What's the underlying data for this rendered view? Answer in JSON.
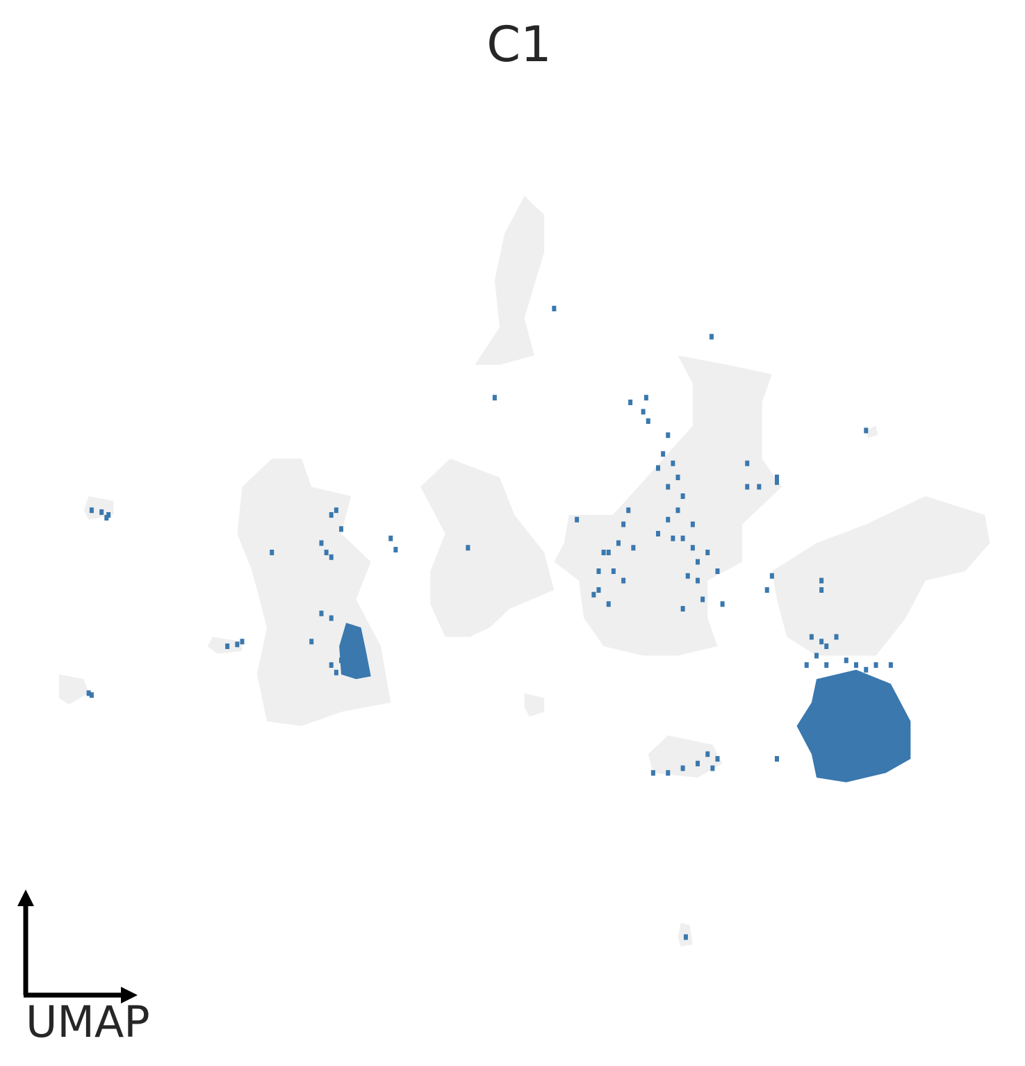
{
  "chart_data": {
    "type": "scatter",
    "title": "C1",
    "axis_indicator_label": "UMAP",
    "grid": false,
    "legend": "none",
    "colors": {
      "background_cells": "#efefef",
      "highlighted_cells": "#3a78ae",
      "axis_arrow": "#000000",
      "text": "#262626"
    },
    "x_range": [
      0,
      100
    ],
    "y_range": [
      0,
      100
    ],
    "background_clusters": [
      {
        "name": "top-spike",
        "outline": [
          [
            50.5,
            88
          ],
          [
            52.5,
            86
          ],
          [
            52.5,
            82
          ],
          [
            50.5,
            75
          ],
          [
            51.5,
            71
          ],
          [
            48,
            70
          ],
          [
            45.5,
            70
          ],
          [
            48,
            74
          ],
          [
            47.5,
            79
          ],
          [
            48.5,
            84
          ]
        ]
      },
      {
        "name": "right-upper",
        "outline": [
          [
            66,
            71
          ],
          [
            71,
            70
          ],
          [
            75.5,
            69
          ],
          [
            74.5,
            66
          ],
          [
            74.5,
            60
          ],
          [
            76.5,
            57
          ],
          [
            72.5,
            53
          ],
          [
            72.5,
            49
          ],
          [
            69,
            47
          ],
          [
            64,
            44
          ],
          [
            59.5,
            46
          ],
          [
            57,
            47
          ],
          [
            56,
            50
          ],
          [
            62,
            57
          ],
          [
            67.5,
            63.5
          ],
          [
            67.5,
            68
          ]
        ]
      },
      {
        "name": "right-mid",
        "outline": [
          [
            55,
            54
          ],
          [
            60.5,
            54
          ],
          [
            66.5,
            52
          ],
          [
            69,
            48
          ],
          [
            69,
            43
          ],
          [
            70,
            40
          ],
          [
            66,
            39
          ],
          [
            62.5,
            39
          ],
          [
            58.5,
            40
          ],
          [
            56.5,
            43
          ],
          [
            56,
            47
          ],
          [
            53.5,
            49
          ],
          [
            54.5,
            51
          ]
        ]
      },
      {
        "name": "left-main",
        "outline": [
          [
            25,
            60
          ],
          [
            28,
            60
          ],
          [
            29,
            57
          ],
          [
            33,
            56
          ],
          [
            32,
            52
          ],
          [
            35,
            49
          ],
          [
            33.5,
            45
          ],
          [
            36,
            40
          ],
          [
            37,
            34
          ],
          [
            32,
            33
          ],
          [
            28,
            31.5
          ],
          [
            24.5,
            32
          ],
          [
            23.5,
            37
          ],
          [
            24.5,
            42
          ],
          [
            23,
            48
          ],
          [
            21.5,
            52
          ],
          [
            22,
            57
          ]
        ]
      },
      {
        "name": "center-blob",
        "outline": [
          [
            43,
            60
          ],
          [
            48,
            58
          ],
          [
            49.5,
            54
          ],
          [
            52.5,
            50
          ],
          [
            53.5,
            46
          ],
          [
            49,
            44
          ],
          [
            47,
            42
          ],
          [
            45,
            41
          ],
          [
            42.5,
            41
          ],
          [
            41,
            44.5
          ],
          [
            41,
            48
          ],
          [
            42.5,
            52
          ],
          [
            41,
            55
          ],
          [
            40,
            57
          ]
        ]
      },
      {
        "name": "right-lower",
        "outline": [
          [
            75.5,
            48
          ],
          [
            80,
            51
          ],
          [
            85,
            53
          ],
          [
            91,
            56
          ],
          [
            97,
            54
          ],
          [
            97.5,
            51
          ],
          [
            95,
            48
          ],
          [
            91,
            47
          ],
          [
            89,
            43
          ],
          [
            86,
            39
          ],
          [
            80,
            39
          ],
          [
            77,
            41
          ],
          [
            76,
            45
          ]
        ]
      },
      {
        "name": "bottom-right-patch",
        "outline": [
          [
            65,
            30.5
          ],
          [
            69.5,
            29.5
          ],
          [
            70.5,
            27.5
          ],
          [
            68,
            26
          ],
          [
            63.5,
            26.5
          ],
          [
            63,
            28.5
          ]
        ]
      },
      {
        "name": "small-far-left",
        "outline": [
          [
            6.5,
            56
          ],
          [
            9,
            55.5
          ],
          [
            9,
            54
          ],
          [
            6.5,
            53.5
          ],
          [
            6,
            54.5
          ]
        ]
      },
      {
        "name": "small-left",
        "outline": [
          [
            19,
            41
          ],
          [
            22,
            40.5
          ],
          [
            22,
            39.5
          ],
          [
            19.5,
            39.2
          ],
          [
            18.5,
            40
          ]
        ]
      },
      {
        "name": "small-bottom-left",
        "outline": [
          [
            3.5,
            37
          ],
          [
            6,
            36.5
          ],
          [
            6.5,
            35
          ],
          [
            4.5,
            33.8
          ],
          [
            3.5,
            34.5
          ]
        ]
      },
      {
        "name": "small-center",
        "outline": [
          [
            50.5,
            35
          ],
          [
            52.5,
            34.5
          ],
          [
            52.5,
            33
          ],
          [
            51,
            32.5
          ],
          [
            50.5,
            33.5
          ]
        ]
      },
      {
        "name": "small-bottom",
        "outline": [
          [
            66.3,
            10.5
          ],
          [
            67.2,
            10.3
          ],
          [
            67.5,
            8.2
          ],
          [
            66.3,
            8
          ],
          [
            66,
            9
          ]
        ]
      },
      {
        "name": "small-top-right",
        "outline": [
          [
            85,
            63
          ],
          [
            86,
            63.5
          ],
          [
            86.2,
            62.5
          ],
          [
            85.2,
            62.2
          ]
        ]
      }
    ],
    "highlighted_clusters": [
      {
        "name": "main-c1-cluster",
        "outline": [
          [
            80,
            36.5
          ],
          [
            84,
            37.5
          ],
          [
            87.5,
            36
          ],
          [
            89.5,
            32
          ],
          [
            89.5,
            28
          ],
          [
            87,
            26.5
          ],
          [
            83,
            25.5
          ],
          [
            80,
            26
          ],
          [
            79.5,
            28.5
          ],
          [
            78,
            31.5
          ],
          [
            79.5,
            34
          ]
        ]
      },
      {
        "name": "left-main-c1-cluster",
        "outline": [
          [
            32.5,
            42.5
          ],
          [
            34,
            42
          ],
          [
            34.5,
            39.5
          ],
          [
            35,
            36.8
          ],
          [
            33.5,
            36.5
          ],
          [
            32,
            37
          ],
          [
            31.8,
            40
          ]
        ]
      }
    ],
    "highlighted_points": [
      [
        62.8,
        66.5
      ],
      [
        61.2,
        66
      ],
      [
        62.5,
        65
      ],
      [
        63,
        64
      ],
      [
        65,
        62.5
      ],
      [
        64.5,
        60.5
      ],
      [
        64,
        59
      ],
      [
        65.5,
        59.5
      ],
      [
        66,
        58
      ],
      [
        65,
        57
      ],
      [
        66.5,
        56
      ],
      [
        66,
        54.5
      ],
      [
        65,
        53.5
      ],
      [
        67.5,
        53
      ],
      [
        66.5,
        51.5
      ],
      [
        67.5,
        50.5
      ],
      [
        68,
        49
      ],
      [
        67,
        47.5
      ],
      [
        68,
        47
      ],
      [
        68.5,
        45
      ],
      [
        66.5,
        44
      ],
      [
        61,
        54.5
      ],
      [
        60.5,
        53
      ],
      [
        60,
        51
      ],
      [
        61.5,
        50.5
      ],
      [
        58.5,
        50
      ],
      [
        58,
        48
      ],
      [
        59.5,
        48
      ],
      [
        60.5,
        47
      ],
      [
        58,
        46
      ],
      [
        59,
        44.5
      ],
      [
        57.5,
        45.5
      ],
      [
        64,
        52
      ],
      [
        65.5,
        51.5
      ],
      [
        69,
        50
      ],
      [
        70,
        48
      ],
      [
        70.5,
        44.5
      ],
      [
        73,
        59.5
      ],
      [
        73,
        57
      ],
      [
        74.2,
        57
      ],
      [
        76,
        58
      ],
      [
        76,
        57.5
      ],
      [
        69.4,
        73
      ],
      [
        53.5,
        76
      ],
      [
        47.5,
        66.5
      ],
      [
        44.8,
        50.5
      ],
      [
        37,
        51.5
      ],
      [
        31,
        54
      ],
      [
        31.5,
        54.5
      ],
      [
        32,
        52.5
      ],
      [
        30,
        51
      ],
      [
        30.5,
        50
      ],
      [
        31,
        49.5
      ],
      [
        25,
        50
      ],
      [
        30,
        43.5
      ],
      [
        31,
        43
      ],
      [
        32,
        38.5
      ],
      [
        29,
        40.5
      ],
      [
        31,
        38
      ],
      [
        31.5,
        37.2
      ],
      [
        37.5,
        50.3
      ],
      [
        20.5,
        40
      ],
      [
        21.5,
        40.2
      ],
      [
        22,
        40.5
      ],
      [
        6.5,
        35
      ],
      [
        6.8,
        34.8
      ],
      [
        6.8,
        54.5
      ],
      [
        7.8,
        54.3
      ],
      [
        8.5,
        54
      ],
      [
        8.3,
        53.7
      ],
      [
        85,
        63
      ],
      [
        75.5,
        47.5
      ],
      [
        75,
        46
      ],
      [
        80.5,
        47
      ],
      [
        80.5,
        46
      ],
      [
        79.5,
        41
      ],
      [
        80.5,
        40.5
      ],
      [
        81,
        40
      ],
      [
        82,
        41
      ],
      [
        80,
        39
      ],
      [
        81,
        38
      ],
      [
        83,
        38.5
      ],
      [
        84,
        38
      ],
      [
        85,
        37.5
      ],
      [
        86,
        38
      ],
      [
        87.5,
        38
      ],
      [
        79,
        38
      ],
      [
        76,
        28
      ],
      [
        63.5,
        26.5
      ],
      [
        65,
        26.5
      ],
      [
        68,
        27.5
      ],
      [
        69.5,
        27
      ],
      [
        70,
        28
      ],
      [
        69,
        28.5
      ],
      [
        66.5,
        27
      ],
      [
        66.8,
        9
      ],
      [
        55.8,
        53.5
      ],
      [
        59,
        50
      ]
    ]
  }
}
